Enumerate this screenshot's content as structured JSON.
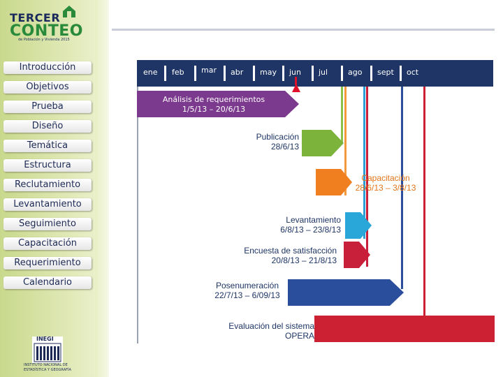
{
  "logo": {
    "line1": "TERCER",
    "line2": "CONTEO",
    "line3": "de Población y Vivienda 2015"
  },
  "nav": [
    "Introducción",
    "Objetivos",
    "Prueba",
    "Diseño",
    "Temática",
    "Estructura",
    "Reclutamiento",
    "Levantamiento",
    "Seguimiento",
    "Capacitación",
    "Requerimiento",
    "Calendario"
  ],
  "footer_logo": {
    "name": "INEGI",
    "caption": "INSTITUTO NACIONAL DE ESTADÍSTICA Y GEOGRAFÍA"
  },
  "months": [
    "ene",
    "feb",
    "mar",
    "abr",
    "may",
    "jun",
    "jul",
    "ago",
    "sept",
    "oct"
  ],
  "tasks": [
    {
      "title": "Análisis de requerimientos",
      "dates": "1/5/13 – 20/6/13",
      "color": "#7c3a8e"
    },
    {
      "title": "Publicación",
      "dates": "28/6/13",
      "color": "#7cb33a"
    },
    {
      "title": "Capacitación",
      "dates": "28/6/13 – 3/8/13",
      "color": "#f07f1f"
    },
    {
      "title": "Levantamiento",
      "dates": "6/8/13 – 23/8/13",
      "color": "#29a7d9"
    },
    {
      "title": "Encuesta de satisfacción",
      "dates": "20/8/13 – 21/8/13",
      "color": "#c8203a"
    },
    {
      "title": "Posenumeración",
      "dates": "22/7/13 – 6/09/13",
      "color": "#2b4e9c"
    },
    {
      "title": "Evaluación del sistema",
      "dates": "OPERA",
      "color": "#cc2133"
    }
  ]
}
